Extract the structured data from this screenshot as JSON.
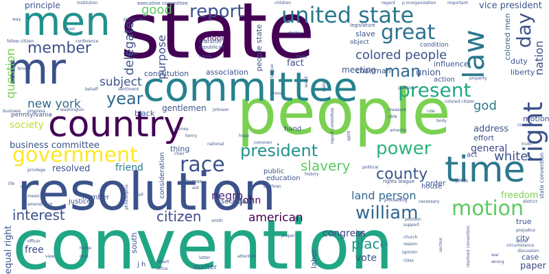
{
  "words": [
    {
      "text": "convention",
      "color": "#21a685"
    },
    {
      "text": "state",
      "color": "#440154"
    },
    {
      "text": "people",
      "color": "#7ad151"
    },
    {
      "text": "resolution",
      "color": "#3b528b"
    },
    {
      "text": "committee",
      "color": "#26828e"
    },
    {
      "text": "mr",
      "color": "#3b528b"
    },
    {
      "text": "men",
      "color": "#21918c"
    },
    {
      "text": "country",
      "color": "#440154"
    },
    {
      "text": "time",
      "color": "#2a788e"
    },
    {
      "text": "law",
      "color": "#2a788e"
    },
    {
      "text": "united state",
      "color": "#2a788e"
    },
    {
      "text": "right",
      "color": "#3b528b"
    },
    {
      "text": "great",
      "color": "#2c728e"
    },
    {
      "text": "government",
      "color": "#fde725"
    },
    {
      "text": "motion",
      "color": "#5ec962"
    },
    {
      "text": "race",
      "color": "#3b528b"
    },
    {
      "text": "president",
      "color": "#21918c"
    },
    {
      "text": "present",
      "color": "#22a884"
    },
    {
      "text": "year",
      "color": "#31688e"
    },
    {
      "text": "power",
      "color": "#2db27d"
    },
    {
      "text": "william",
      "color": "#31688e"
    },
    {
      "text": "report",
      "color": "#3b528b"
    },
    {
      "text": "member",
      "color": "#3b528b"
    },
    {
      "text": "day",
      "color": "#3b528b"
    },
    {
      "text": "man",
      "color": "#31688e"
    },
    {
      "text": "colored people",
      "color": "#3b528b"
    },
    {
      "text": "new york",
      "color": "#31688e"
    },
    {
      "text": "county",
      "color": "#3b528b"
    },
    {
      "text": "slavery",
      "color": "#5ec962"
    },
    {
      "text": "citizen",
      "color": "#3e4989"
    },
    {
      "text": "interest",
      "color": "#3b528b"
    },
    {
      "text": "american",
      "color": "#440154"
    },
    {
      "text": "place",
      "color": "#21918c"
    },
    {
      "text": "business committee",
      "color": "#3b528b"
    },
    {
      "text": "negro",
      "color": "#482878"
    },
    {
      "text": "land person",
      "color": "#31688e"
    },
    {
      "text": "white",
      "color": "#3b528b"
    },
    {
      "text": "god",
      "color": "#2a788e"
    },
    {
      "text": "good",
      "color": "#5ec962"
    },
    {
      "text": "subject",
      "color": "#3b528b"
    },
    {
      "text": "delegate",
      "color": "#3b528b"
    },
    {
      "text": "purpose",
      "color": "#3e4989"
    },
    {
      "text": "question",
      "color": "#7ad151"
    },
    {
      "text": "general",
      "color": "#3e4989"
    },
    {
      "text": "nation",
      "color": "#3e4989"
    },
    {
      "text": "colored men",
      "color": "#31688e"
    },
    {
      "text": "society",
      "color": "#bddf26"
    },
    {
      "text": "congress",
      "color": "#3e4989"
    },
    {
      "text": "john",
      "color": "#440154"
    },
    {
      "text": "freedom",
      "color": "#7ad151"
    },
    {
      "text": "friend",
      "color": "#2a788e"
    },
    {
      "text": "resolved",
      "color": "#3b528b"
    },
    {
      "text": "vote",
      "color": "#3b528b"
    },
    {
      "text": "paper",
      "color": "#3e4989"
    },
    {
      "text": "free",
      "color": "#3e4989"
    },
    {
      "text": "equal right",
      "color": "#3b528b"
    },
    {
      "text": "fact",
      "color": "#3e4989"
    },
    {
      "text": "union",
      "color": "#3b528b"
    },
    {
      "text": "address",
      "color": "#3b528b"
    },
    {
      "text": "meeting",
      "color": "#3b528b"
    },
    {
      "text": "principle",
      "color": "#3b528b"
    },
    {
      "text": "slave",
      "color": "#3b528b"
    },
    {
      "text": "gentlemen",
      "color": "#3b528b"
    },
    {
      "text": "order",
      "color": "#3b528b"
    },
    {
      "text": "duty",
      "color": "#3b528b"
    },
    {
      "text": "liberty",
      "color": "#3b528b"
    },
    {
      "text": "influence",
      "color": "#3b528b"
    },
    {
      "text": "effort",
      "color": "#3b528b"
    },
    {
      "text": "chairman",
      "color": "#3b528b"
    },
    {
      "text": "constitution",
      "color": "#3b528b"
    },
    {
      "text": "association",
      "color": "#3b528b"
    },
    {
      "text": "school",
      "color": "#440154"
    },
    {
      "text": "people state",
      "color": "#3b528b"
    },
    {
      "text": "vice president",
      "color": "#3b528b"
    },
    {
      "text": "motion mr",
      "color": "#3b528b"
    },
    {
      "text": "black",
      "color": "#3b528b"
    },
    {
      "text": "education",
      "color": "#3b528b"
    },
    {
      "text": "public",
      "color": "#3b528b"
    },
    {
      "text": "thing",
      "color": "#3b528b"
    },
    {
      "text": "secretary",
      "color": "#3b528b"
    },
    {
      "text": "justice",
      "color": "#3b528b"
    },
    {
      "text": "number",
      "color": "#3b528b"
    },
    {
      "text": "south",
      "color": "#3b528b"
    },
    {
      "text": "case",
      "color": "#3b528b"
    },
    {
      "text": "city",
      "color": "#3b528b"
    },
    {
      "text": "true",
      "color": "#3b528b"
    },
    {
      "text": "labor",
      "color": "#3b528b"
    },
    {
      "text": "house",
      "color": "#3b528b"
    },
    {
      "text": "matter",
      "color": "#3b528b"
    },
    {
      "text": "action",
      "color": "#3b528b"
    },
    {
      "text": "j w",
      "color": "#3b528b"
    },
    {
      "text": "j h",
      "color": "#3b528b"
    },
    {
      "text": "act",
      "color": "#3b528b"
    },
    {
      "text": "hand",
      "color": "#3b528b"
    },
    {
      "text": "consideration",
      "color": "#3b528b"
    },
    {
      "text": "pennsylvania",
      "color": "#3b528b"
    },
    {
      "text": "executive committee",
      "color": "#3b528b"
    },
    {
      "text": "legislature",
      "color": "#3b528b"
    },
    {
      "text": "condition",
      "color": "#3b528b"
    },
    {
      "text": "object",
      "color": "#3b528b"
    },
    {
      "text": "state convention",
      "color": "#3b528b"
    },
    {
      "text": "resolved convention",
      "color": "#3b528b"
    },
    {
      "text": "rights league",
      "color": "#3b528b"
    },
    {
      "text": "children",
      "color": "#3b528b"
    },
    {
      "text": "organization",
      "color": "#3b528b"
    },
    {
      "text": "important",
      "color": "#3b528b"
    },
    {
      "text": "institution",
      "color": "#3b528b"
    },
    {
      "text": "regard",
      "color": "#3b528b"
    },
    {
      "text": "p m",
      "color": "#3b528b"
    },
    {
      "text": "prayer rev",
      "color": "#3b528b"
    },
    {
      "text": "republican",
      "color": "#3b528b"
    },
    {
      "text": "character",
      "color": "#3b528b"
    },
    {
      "text": "conference",
      "color": "#3b528b"
    },
    {
      "text": "fellow citizen",
      "color": "#3b528b"
    },
    {
      "text": "george",
      "color": "#3b528b"
    },
    {
      "text": "future",
      "color": "#3b528b"
    },
    {
      "text": "desire",
      "color": "#3b528b"
    },
    {
      "text": "party",
      "color": "#3b528b"
    },
    {
      "text": "league",
      "color": "#3b528b"
    },
    {
      "text": "honor",
      "color": "#3b528b"
    },
    {
      "text": "brown",
      "color": "#3b528b"
    },
    {
      "text": "behalf",
      "color": "#3b528b"
    },
    {
      "text": "sentiment",
      "color": "#3b528b"
    },
    {
      "text": "press",
      "color": "#3b528b"
    },
    {
      "text": "world",
      "color": "#3b528b"
    },
    {
      "text": "claim",
      "color": "#3b528b"
    },
    {
      "text": "jackson",
      "color": "#3b528b"
    },
    {
      "text": "property",
      "color": "#3b528b"
    },
    {
      "text": "colored citizen",
      "color": "#3b528b"
    },
    {
      "text": "business",
      "color": "#3b528b"
    },
    {
      "text": "progress",
      "color": "#3b528b"
    },
    {
      "text": "washington",
      "color": "#3b528b"
    },
    {
      "text": "johnson",
      "color": "#3b528b"
    },
    {
      "text": "report committee",
      "color": "#3b528b"
    },
    {
      "text": "spirit",
      "color": "#3b528b"
    },
    {
      "text": "measure",
      "color": "#3b528b"
    },
    {
      "text": "able",
      "color": "#3b528b"
    },
    {
      "text": "rule",
      "color": "#3b528b"
    },
    {
      "text": "body",
      "color": "#3b528b"
    },
    {
      "text": "course",
      "color": "#3b528b"
    },
    {
      "text": "truth",
      "color": "#3b528b"
    },
    {
      "text": "henry",
      "color": "#3b528b"
    },
    {
      "text": "money",
      "color": "#3b528b"
    },
    {
      "text": "hope",
      "color": "#3b528b"
    },
    {
      "text": "chair",
      "color": "#3b528b"
    },
    {
      "text": "national",
      "color": "#3b528b"
    },
    {
      "text": "common",
      "color": "#3b528b"
    },
    {
      "text": "america",
      "color": "#3b528b"
    },
    {
      "text": "life",
      "color": "#3b528b"
    },
    {
      "text": "privilege",
      "color": "#3b528b"
    },
    {
      "text": "political",
      "color": "#3b528b"
    },
    {
      "text": "thomas",
      "color": "#3b528b"
    },
    {
      "text": "aid",
      "color": "#3b528b"
    },
    {
      "text": "brethren",
      "color": "#3b528b"
    },
    {
      "text": "history",
      "color": "#3b528b"
    },
    {
      "text": "james",
      "color": "#3b528b"
    },
    {
      "text": "cause",
      "color": "#3b528b"
    },
    {
      "text": "district",
      "color": "#3b528b"
    },
    {
      "text": "work",
      "color": "#3b528b"
    },
    {
      "text": "messr",
      "color": "#3b528b"
    },
    {
      "text": "amendment",
      "color": "#3b528b"
    },
    {
      "text": "philadelphia",
      "color": "#3b528b"
    },
    {
      "text": "hall",
      "color": "#3b528b"
    },
    {
      "text": "mind",
      "color": "#3b528b"
    },
    {
      "text": "smith",
      "color": "#3b528b"
    },
    {
      "text": "proceeding",
      "color": "#3b528b"
    },
    {
      "text": "necessary",
      "color": "#3b528b"
    },
    {
      "text": "position",
      "color": "#3b528b"
    },
    {
      "text": "support",
      "color": "#3b528b"
    },
    {
      "text": "prejudice",
      "color": "#3b528b"
    },
    {
      "text": "officer",
      "color": "#3b528b"
    },
    {
      "text": "view",
      "color": "#3b528b"
    },
    {
      "text": "home",
      "color": "#3b528b"
    },
    {
      "text": "ohio",
      "color": "#3b528b"
    },
    {
      "text": "robert",
      "color": "#3b528b"
    },
    {
      "text": "office",
      "color": "#3b528b"
    },
    {
      "text": "latter",
      "color": "#3b528b"
    },
    {
      "text": "attention",
      "color": "#3b528b"
    },
    {
      "text": "proper",
      "color": "#3b528b"
    },
    {
      "text": "church",
      "color": "#3b528b"
    },
    {
      "text": "reason",
      "color": "#3b528b"
    },
    {
      "text": "opinion",
      "color": "#3b528b"
    },
    {
      "text": "class",
      "color": "#3b528b"
    },
    {
      "text": "section",
      "color": "#3b528b"
    },
    {
      "text": "war",
      "color": "#3b528b"
    },
    {
      "text": "wrong",
      "color": "#3b528b"
    },
    {
      "text": "word",
      "color": "#3b528b"
    },
    {
      "text": "circumstance",
      "color": "#3b528b"
    },
    {
      "text": "discussion",
      "color": "#3b528b"
    },
    {
      "text": "way",
      "color": "#3b528b"
    }
  ]
}
